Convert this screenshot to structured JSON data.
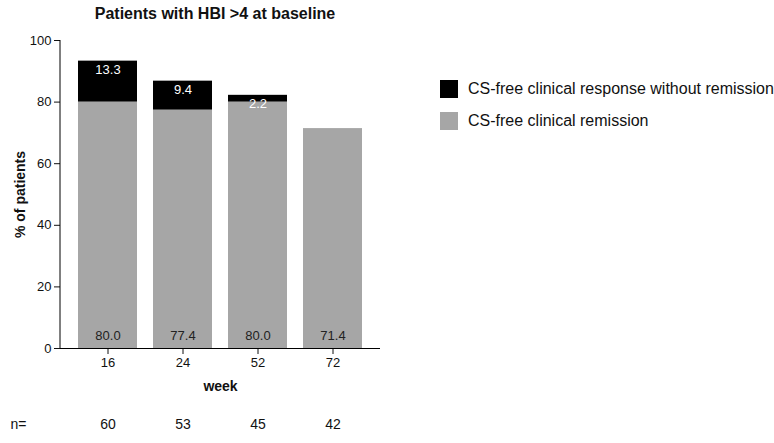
{
  "chart_data": {
    "type": "bar",
    "title": "Patients with HBI >4 at baseline",
    "x_label": "week",
    "y_label": "% of patients",
    "categories": [
      16,
      24,
      52,
      72
    ],
    "series": [
      {
        "name": "CS-free clinical response without remission",
        "color": "#000000",
        "values": [
          13.3,
          9.4,
          2.2,
          null
        ],
        "value_labels": [
          "13.3",
          "9.4",
          "2.2",
          null
        ]
      },
      {
        "name": "CS-free clinical remission",
        "color": "#a6a6a6",
        "values": [
          80.0,
          77.4,
          80.0,
          71.4
        ],
        "value_labels": [
          "80.0",
          "77.4",
          "80.0",
          "71.4"
        ]
      }
    ],
    "n_label": "n=",
    "n": [
      60,
      53,
      45,
      42
    ],
    "ylim": [
      0,
      100
    ],
    "yticks": [
      0,
      20,
      40,
      60,
      80,
      100
    ],
    "stacked": true,
    "data_labels": true,
    "legend": "right",
    "grid": false
  }
}
